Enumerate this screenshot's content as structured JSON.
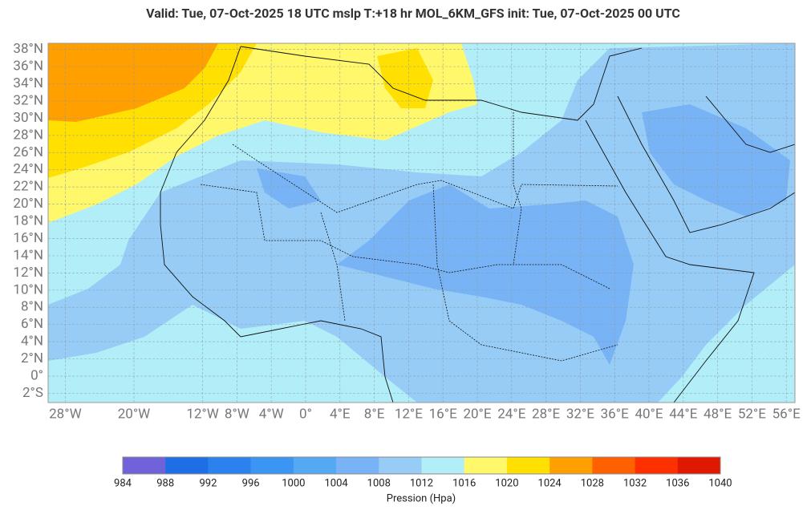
{
  "header": {
    "title": "Valid: Tue, 07-Oct-2025   18 UTC   mslp   T:+18 hr   MOL_6KM_GFS      init: Tue, 07-Oct-2025   00 UTC"
  },
  "map": {
    "lat_labels": [
      {
        "value": 38,
        "label": "38°N"
      },
      {
        "value": 36,
        "label": "36°N"
      },
      {
        "value": 34,
        "label": "34°N"
      },
      {
        "value": 32,
        "label": "32°N"
      },
      {
        "value": 30,
        "label": "30°N"
      },
      {
        "value": 28,
        "label": "28°N"
      },
      {
        "value": 26,
        "label": "26°N"
      },
      {
        "value": 24,
        "label": "24°N"
      },
      {
        "value": 22,
        "label": "22°N"
      },
      {
        "value": 20,
        "label": "20°N"
      },
      {
        "value": 18,
        "label": "18°N"
      },
      {
        "value": 16,
        "label": "16°N"
      },
      {
        "value": 14,
        "label": "14°N"
      },
      {
        "value": 12,
        "label": "12°N"
      },
      {
        "value": 10,
        "label": "10°N"
      },
      {
        "value": 8,
        "label": "8°N"
      },
      {
        "value": 6,
        "label": "6°N"
      },
      {
        "value": 4,
        "label": "4°N"
      },
      {
        "value": 2,
        "label": "2°N"
      },
      {
        "value": 0,
        "label": "0°"
      },
      {
        "value": -2,
        "label": "2°S"
      }
    ],
    "lon_labels": [
      {
        "value": -28,
        "label": "28°W"
      },
      {
        "value": -20,
        "label": "20°W"
      },
      {
        "value": -12,
        "label": "12°W"
      },
      {
        "value": -8,
        "label": "8°W"
      },
      {
        "value": -4,
        "label": "4°W"
      },
      {
        "value": 0,
        "label": "0°"
      },
      {
        "value": 4,
        "label": "4°E"
      },
      {
        "value": 8,
        "label": "8°E"
      },
      {
        "value": 12,
        "label": "12°E"
      },
      {
        "value": 16,
        "label": "16°E"
      },
      {
        "value": 20,
        "label": "20°E"
      },
      {
        "value": 24,
        "label": "24°E"
      },
      {
        "value": 28,
        "label": "28°E"
      },
      {
        "value": 32,
        "label": "32°E"
      },
      {
        "value": 36,
        "label": "36°E"
      },
      {
        "value": 40,
        "label": "40°E"
      },
      {
        "value": 44,
        "label": "44°E"
      },
      {
        "value": 48,
        "label": "48°E"
      },
      {
        "value": 52,
        "label": "52°E"
      },
      {
        "value": 56,
        "label": "56°E"
      }
    ]
  },
  "colorbar": {
    "levels": [
      984,
      988,
      992,
      996,
      1000,
      1004,
      1008,
      1012,
      1016,
      1020,
      1024,
      1028,
      1032,
      1036,
      1040
    ],
    "colors": [
      "#7062d8",
      "#1e6fe6",
      "#2b82ee",
      "#3b95f2",
      "#55a8f2",
      "#78b4f5",
      "#96ccf6",
      "#b2eef8",
      "#fff86a",
      "#ffe000",
      "#ffa000",
      "#ff6000",
      "#ff3000",
      "#e01800"
    ],
    "label": "Pression (Hpa)"
  }
}
